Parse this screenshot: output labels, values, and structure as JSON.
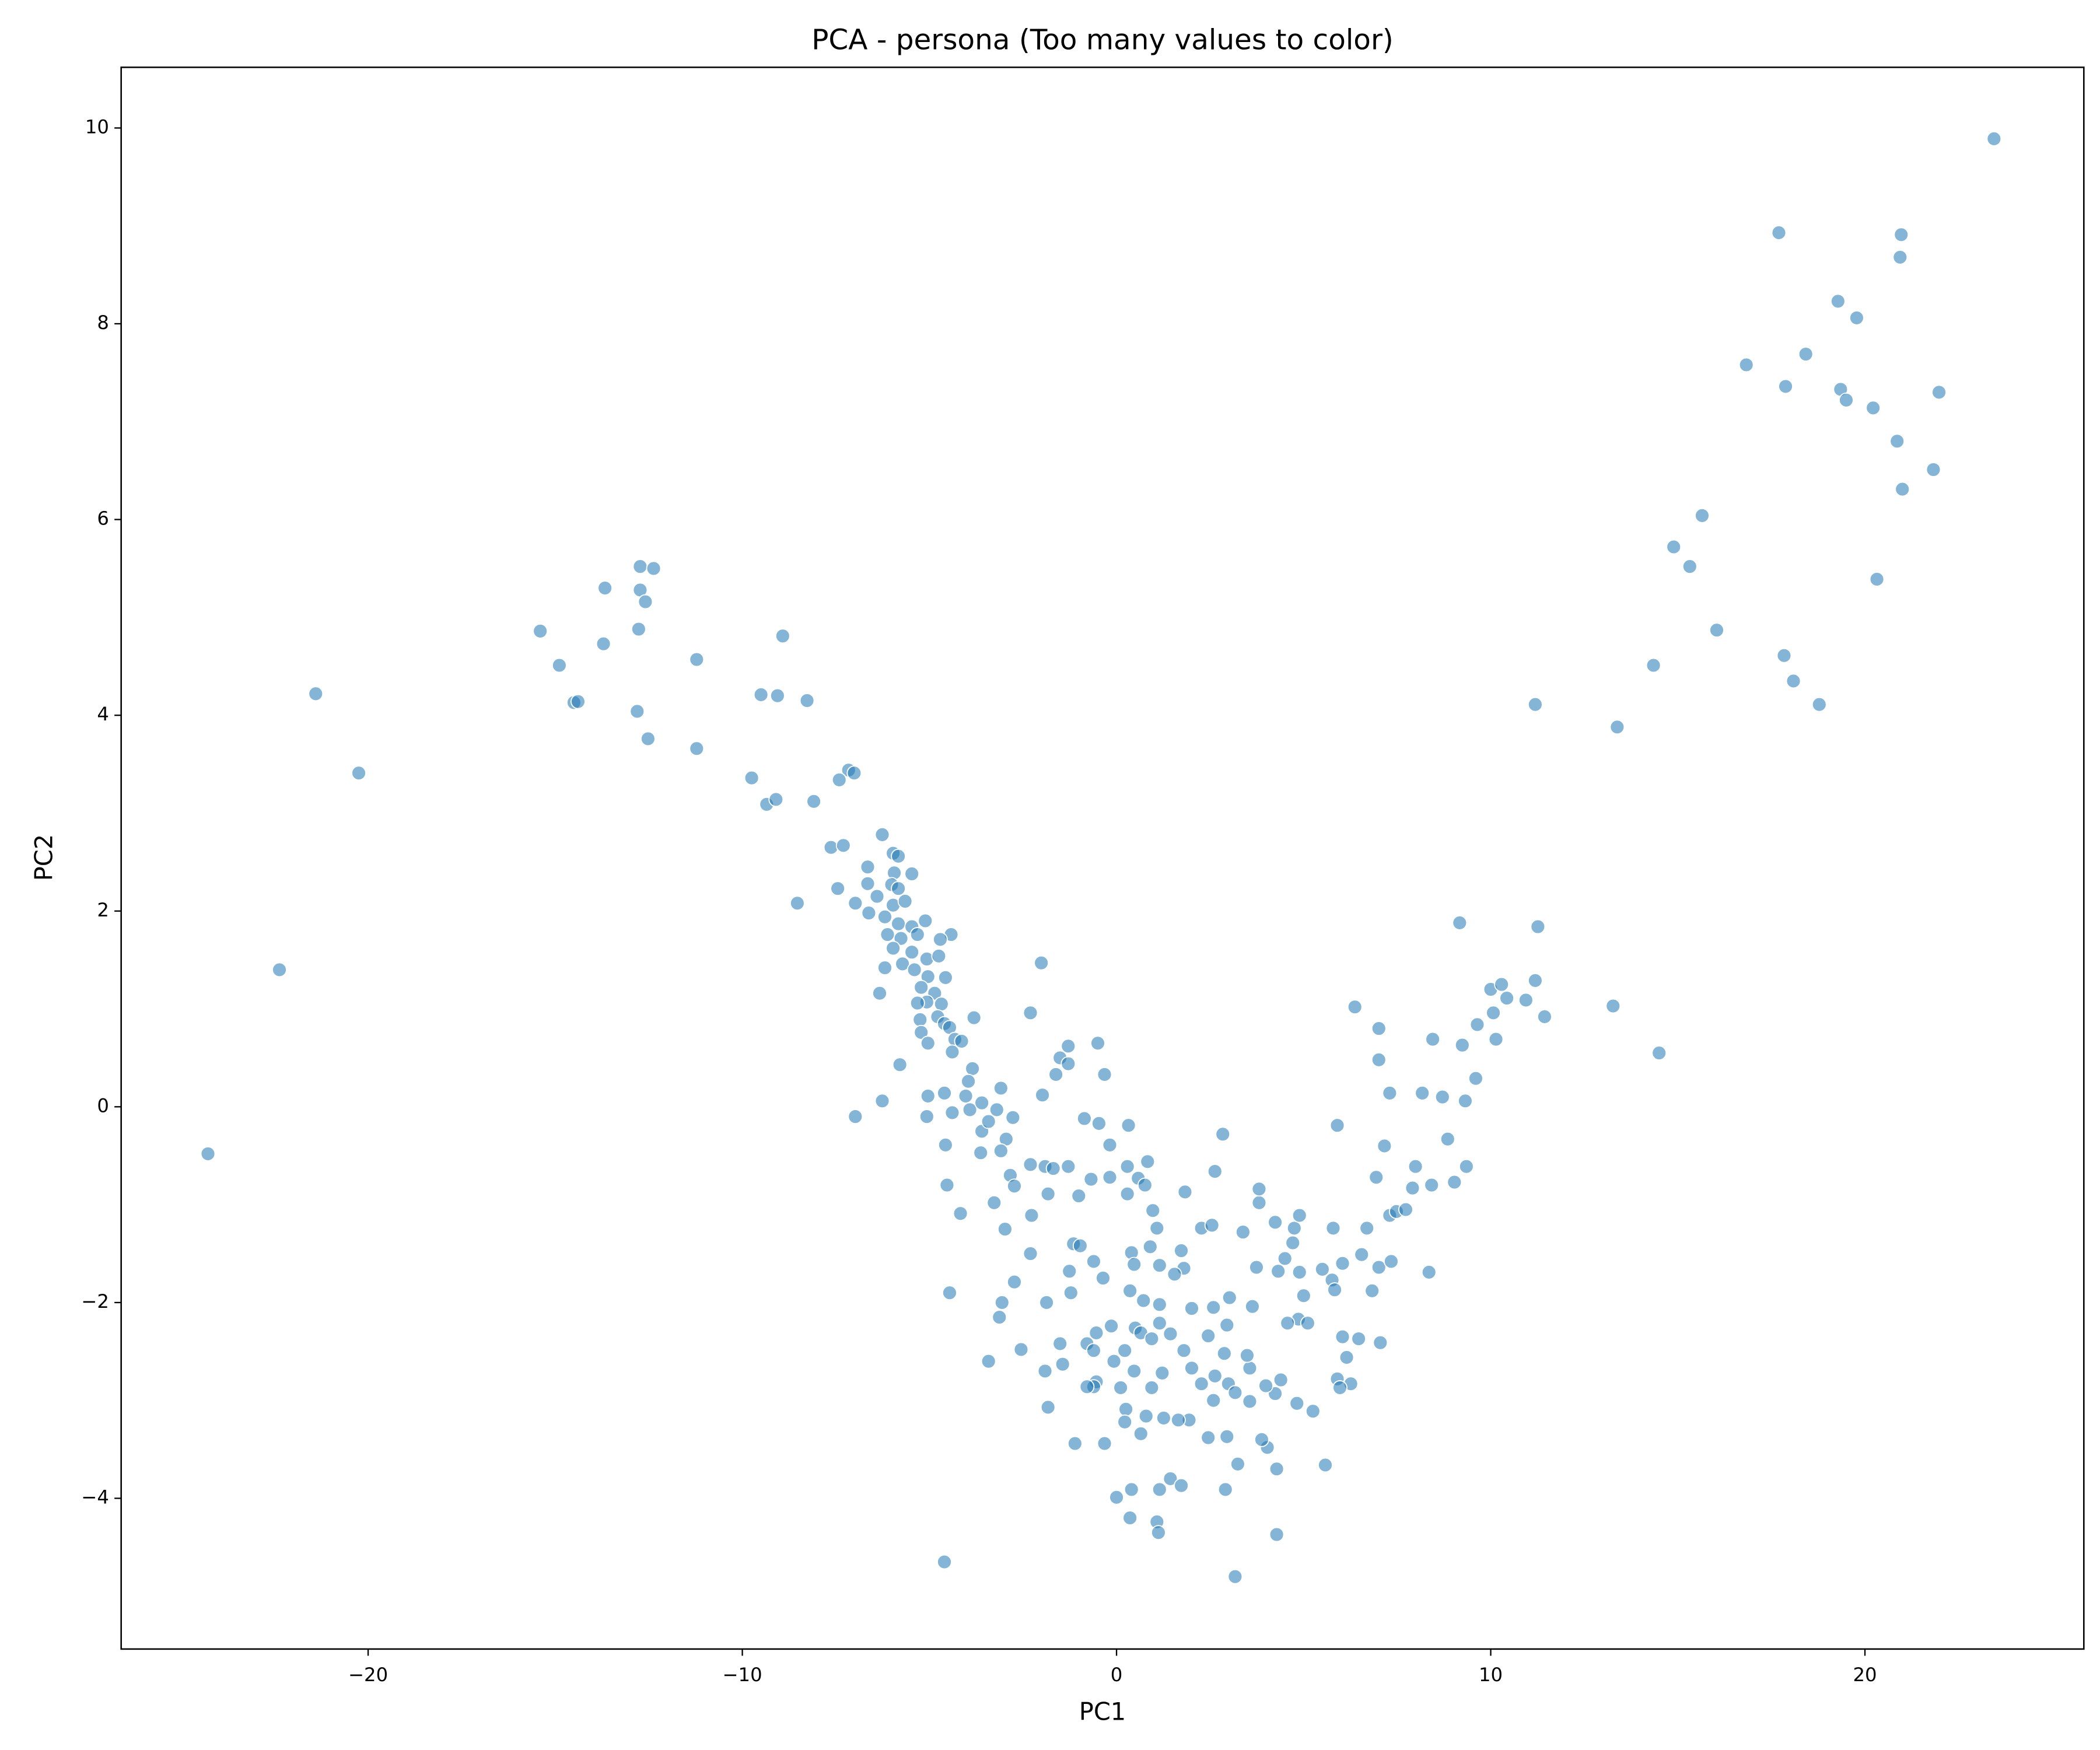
{
  "chart_data": {
    "type": "scatter",
    "title": "PCA - persona (Too many values to color)",
    "x_label": "PC1",
    "y_label": "PC2",
    "color": "#1f77b4",
    "xlim": [
      -26.6,
      25.85
    ],
    "ylim": [
      -5.54,
      10.62
    ],
    "xticks": [
      {
        "value": -20,
        "label": "−20"
      },
      {
        "value": -10,
        "label": "−10"
      },
      0,
      10,
      20
    ],
    "yticks": [
      {
        "value": -4,
        "label": "−4"
      },
      {
        "value": -2,
        "label": "−2"
      },
      0,
      2,
      4,
      6,
      8,
      10
    ],
    "x": [
      23.45,
      17.7,
      20.97,
      20.94,
      19.28,
      19.78,
      18.42,
      16.83,
      17.88,
      19.35,
      19.5,
      20.22,
      21.98,
      20.86,
      21.83,
      21.0,
      15.65,
      14.89,
      15.32,
      20.32,
      16.04,
      14.35,
      17.84,
      18.09,
      18.78,
      11.19,
      13.38,
      14.5,
      13.27,
      -24.28,
      -22.37,
      -21.4,
      -20.25,
      -15.4,
      -14.89,
      -14.5,
      -14.39,
      -13.67,
      -13.71,
      -12.73,
      -12.37,
      -12.73,
      -12.59,
      -12.77,
      -12.81,
      -12.52,
      -11.22,
      -11.22,
      -9.5,
      -9.06,
      -8.92,
      -8.27,
      -9.75,
      -9.35,
      -9.1,
      -8.09,
      -7.16,
      -7.01,
      -7.41,
      -7.63,
      -7.3,
      -8.53,
      -7.45,
      -6.98,
      -6.26,
      -6.65,
      -5.97,
      -5.83,
      -5.94,
      -6.01,
      -5.83,
      -5.47,
      -6.65,
      -6.4,
      -5.97,
      -5.65,
      -6.62,
      -6.19,
      -5.83,
      -5.47,
      -5.11,
      -6.12,
      -5.76,
      -5.32,
      -4.42,
      -4.71,
      -5.97,
      -5.47,
      -5.07,
      -4.75,
      -5.72,
      -5.4,
      -6.19,
      -5.04,
      -4.57,
      -5.22,
      -4.86,
      -5.07,
      -6.33,
      -5.32,
      -4.68,
      -4.78,
      -5.25,
      -4.6,
      -4.46,
      -5.22,
      -3.81,
      -4.32,
      -5.04,
      -4.39,
      -4.14,
      -5.79,
      -3.85,
      -6.26,
      -6.98,
      -5.04,
      -4.6,
      -5.07,
      -4.57,
      -4.39,
      -4.03,
      -3.96,
      -3.92,
      -4.53,
      -4.17,
      -4.46,
      -4.6,
      -3.6,
      -3.09,
      -3.2,
      -3.6,
      -3.42,
      -2.95,
      -3.09,
      -2.77,
      -3.63,
      -3.27,
      -2.84,
      -2.73,
      -2.98,
      -2.27,
      -2.01,
      -2.3,
      -1.98,
      -1.62,
      -1.29,
      -1.51,
      -1.29,
      -0.5,
      -0.32,
      -2.3,
      -1.91,
      -1.69,
      -1.29,
      -1.83,
      -2.3,
      -2.73,
      -3.06,
      -3.13,
      -3.42,
      -2.55,
      -1.91,
      -1.83,
      -1.51,
      -1.44,
      -1.11,
      -0.32,
      -0.79,
      -0.61,
      -0.07,
      -0.14,
      -0.54,
      -1.15,
      -0.97,
      -0.61,
      -0.36,
      -1.26,
      -1.87,
      -1.22,
      -1.01,
      -0.68,
      -0.18,
      -0.47,
      -0.86,
      -0.18,
      0.32,
      0.29,
      0.83,
      0.58,
      0.29,
      0.76,
      0.97,
      1.08,
      0.4,
      0.47,
      0.9,
      1.15,
      1.73,
      1.8,
      2.27,
      2.55,
      1.83,
      2.63,
      2.84,
      0.36,
      0.72,
      1.15,
      1.55,
      2.01,
      2.59,
      3.02,
      3.63,
      3.74,
      4.32,
      4.5,
      4.71,
      4.75,
      4.24,
      3.81,
      3.81,
      3.38,
      4.89,
      4.89,
      4.86,
      5.11,
      5.0,
      5.5,
      5.76,
      5.83,
      5.79,
      5.9,
      6.37,
      7.01,
      7.01,
      7.3,
      8.17,
      8.45,
      7.16,
      6.94,
      6.69,
      6.55,
      6.04,
      7.01,
      7.34,
      7.3,
      7.48,
      7.73,
      7.91,
      7.99,
      8.35,
      8.42,
      9.03,
      8.85,
      9.35,
      8.71,
      9.32,
      9.6,
      9.24,
      9.64,
      10.07,
      10.14,
      10.0,
      10.29,
      10.43,
      10.94,
      11.19,
      11.44,
      11.26,
      9.17,
      5.9,
      6.26,
      6.04,
      6.47,
      6.15,
      6.83,
      7.05,
      5.97,
      5.58,
      5.25,
      4.82,
      4.39,
      4.24,
      3.99,
      4.03,
      3.88,
      4.28,
      4.28,
      3.17,
      3.24,
      2.95,
      2.99,
      3.17,
      3.56,
      3.56,
      2.88,
      2.63,
      2.95,
      2.45,
      2.01,
      2.27,
      2.59,
      2.45,
      2.91,
      1.94,
      1.65,
      1.26,
      1.44,
      1.73,
      1.15,
      1.08,
      1.12,
      0.4,
      0.36,
      0,
      0.65,
      0.79,
      0.25,
      0.22,
      0.11,
      0.47,
      0.94,
      1.22,
      1.15,
      0.5,
      0.22,
      0.65,
      -0.54,
      -0.61,
      -0.79,
      1.44,
      0.94,
      1.8,
      3.49,
      4.57
    ],
    "values": [
      9.89,
      8.93,
      8.91,
      8.68,
      8.23,
      8.06,
      7.69,
      7.58,
      7.36,
      7.33,
      7.22,
      7.14,
      7.3,
      6.8,
      6.51,
      6.31,
      6.04,
      5.72,
      5.52,
      5.39,
      4.87,
      4.51,
      4.61,
      4.35,
      4.11,
      4.11,
      3.88,
      0.55,
      1.03,
      -0.48,
      1.4,
      4.22,
      3.41,
      4.86,
      4.51,
      4.13,
      4.14,
      5.3,
      4.73,
      5.52,
      5.5,
      5.28,
      5.16,
      4.88,
      4.04,
      3.76,
      4.57,
      3.66,
      4.21,
      4.2,
      4.81,
      4.15,
      3.36,
      3.09,
      3.14,
      3.12,
      3.44,
      3.41,
      3.34,
      2.65,
      2.67,
      2.08,
      2.23,
      2.08,
      2.78,
      2.45,
      2.59,
      2.56,
      2.39,
      2.27,
      2.23,
      2.38,
      2.28,
      2.15,
      2.06,
      2.1,
      1.98,
      1.94,
      1.87,
      1.84,
      1.9,
      1.76,
      1.72,
      1.76,
      1.76,
      1.71,
      1.62,
      1.58,
      1.51,
      1.54,
      1.46,
      1.4,
      1.42,
      1.33,
      1.32,
      1.22,
      1.16,
      1.07,
      1.16,
      1.06,
      1.05,
      0.92,
      0.89,
      0.85,
      0.81,
      0.76,
      0.91,
      0.69,
      0.65,
      0.56,
      0.67,
      0.43,
      0.39,
      0.06,
      -0.1,
      0.11,
      0.14,
      -0.1,
      -0.39,
      -0.06,
      0.11,
      0.26,
      -0.03,
      -0.8,
      -1.09,
      -1.9,
      -4.65,
      0.04,
      0.19,
      -0.03,
      -0.25,
      -0.15,
      -0.33,
      -0.45,
      -0.11,
      -0.47,
      -0.98,
      -0.7,
      -0.81,
      -1.25,
      -1.11,
      1.47,
      0.96,
      0.12,
      0.33,
      0.62,
      0.5,
      0.44,
      0.65,
      0.33,
      -0.59,
      -0.61,
      -0.63,
      -0.61,
      -0.89,
      -1.5,
      -1.79,
      -2.0,
      -2.15,
      -2.6,
      -2.48,
      -2.7,
      -3.07,
      -2.42,
      -2.63,
      -3.44,
      -3.44,
      -2.42,
      -2.49,
      -2.6,
      -2.24,
      -2.31,
      -1.4,
      -1.42,
      -1.58,
      -1.75,
      -1.68,
      -2.0,
      -1.9,
      -0.91,
      -0.74,
      -0.72,
      -0.17,
      -0.12,
      -0.39,
      -0.19,
      -0.61,
      -0.56,
      -0.73,
      -0.89,
      -0.8,
      -1.06,
      -1.24,
      -1.49,
      -1.61,
      -1.43,
      -1.62,
      -1.47,
      -1.65,
      -1.24,
      -1.21,
      -0.87,
      -0.66,
      -0.28,
      -1.88,
      -1.98,
      -2.02,
      -1.71,
      -2.06,
      -2.05,
      -1.95,
      -2.04,
      -1.64,
      -1.68,
      -1.55,
      -1.39,
      -1.24,
      -1.18,
      -0.98,
      -0.84,
      -1.28,
      -1.11,
      -1.69,
      -2.17,
      -2.21,
      -1.93,
      -1.66,
      -1.77,
      -1.87,
      -1.24,
      -0.19,
      1.02,
      0.8,
      0.48,
      0.14,
      0.14,
      0.69,
      -0.4,
      -0.72,
      -1.24,
      -1.51,
      -1.6,
      -1.64,
      -1.58,
      -1.11,
      -1.07,
      -1.05,
      -0.83,
      -0.61,
      -1.69,
      -0.8,
      -0.77,
      -0.33,
      -0.61,
      0.1,
      0.06,
      0.29,
      0.63,
      0.84,
      0.96,
      0.69,
      1.2,
      1.25,
      1.11,
      1.09,
      1.29,
      0.92,
      1.84,
      1.88,
      -2.78,
      -2.83,
      -2.35,
      -2.37,
      -2.56,
      -1.88,
      -2.41,
      -2.87,
      -3.66,
      -3.11,
      -3.03,
      -2.79,
      -2.93,
      -2.85,
      -3.48,
      -3.4,
      -3.7,
      -4.37,
      -4.8,
      -3.65,
      -3.37,
      -2.83,
      -2.92,
      -3.01,
      -2.67,
      -2.52,
      -2.75,
      -2.23,
      -2.34,
      -2.67,
      -2.83,
      -3.0,
      -3.38,
      -3.91,
      -3.2,
      -3.2,
      -3.18,
      -3.8,
      -3.87,
      -3.91,
      -4.24,
      -4.35,
      -3.91,
      -4.2,
      -3.99,
      -3.34,
      -3.16,
      -3.09,
      -3.22,
      -2.87,
      -2.7,
      -2.87,
      -2.72,
      -2.21,
      -2.26,
      -2.49,
      -2.31,
      -2.81,
      -2.86,
      -2.86,
      -2.32,
      -2.37,
      -2.49,
      -2.54,
      -2.21
    ]
  }
}
